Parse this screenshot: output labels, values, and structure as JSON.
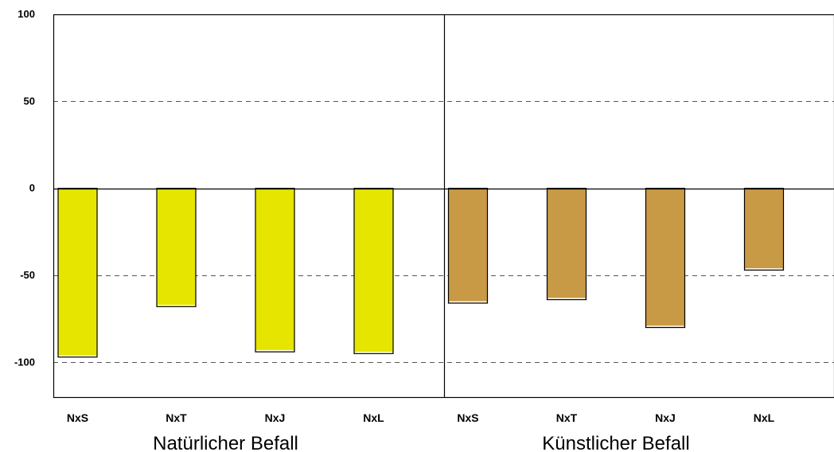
{
  "chart_data": {
    "type": "bar",
    "ylim": [
      -120,
      100
    ],
    "yticks": [
      100,
      50,
      0,
      -50,
      -100
    ],
    "grid": "dashed horizontal at 50, -50, -100",
    "groups": [
      {
        "label": "Natürlicher Befall",
        "color": "#e5e500",
        "categories": [
          "NxS",
          "NxT",
          "NxJ",
          "NxL"
        ],
        "values": [
          -97,
          -68,
          -94,
          -95
        ]
      },
      {
        "label": "Künstlicher Befall",
        "color": "#c99a45",
        "categories": [
          "NxS",
          "NxT",
          "NxJ",
          "NxL"
        ],
        "values": [
          -66,
          -64,
          -80,
          -47
        ]
      }
    ]
  }
}
